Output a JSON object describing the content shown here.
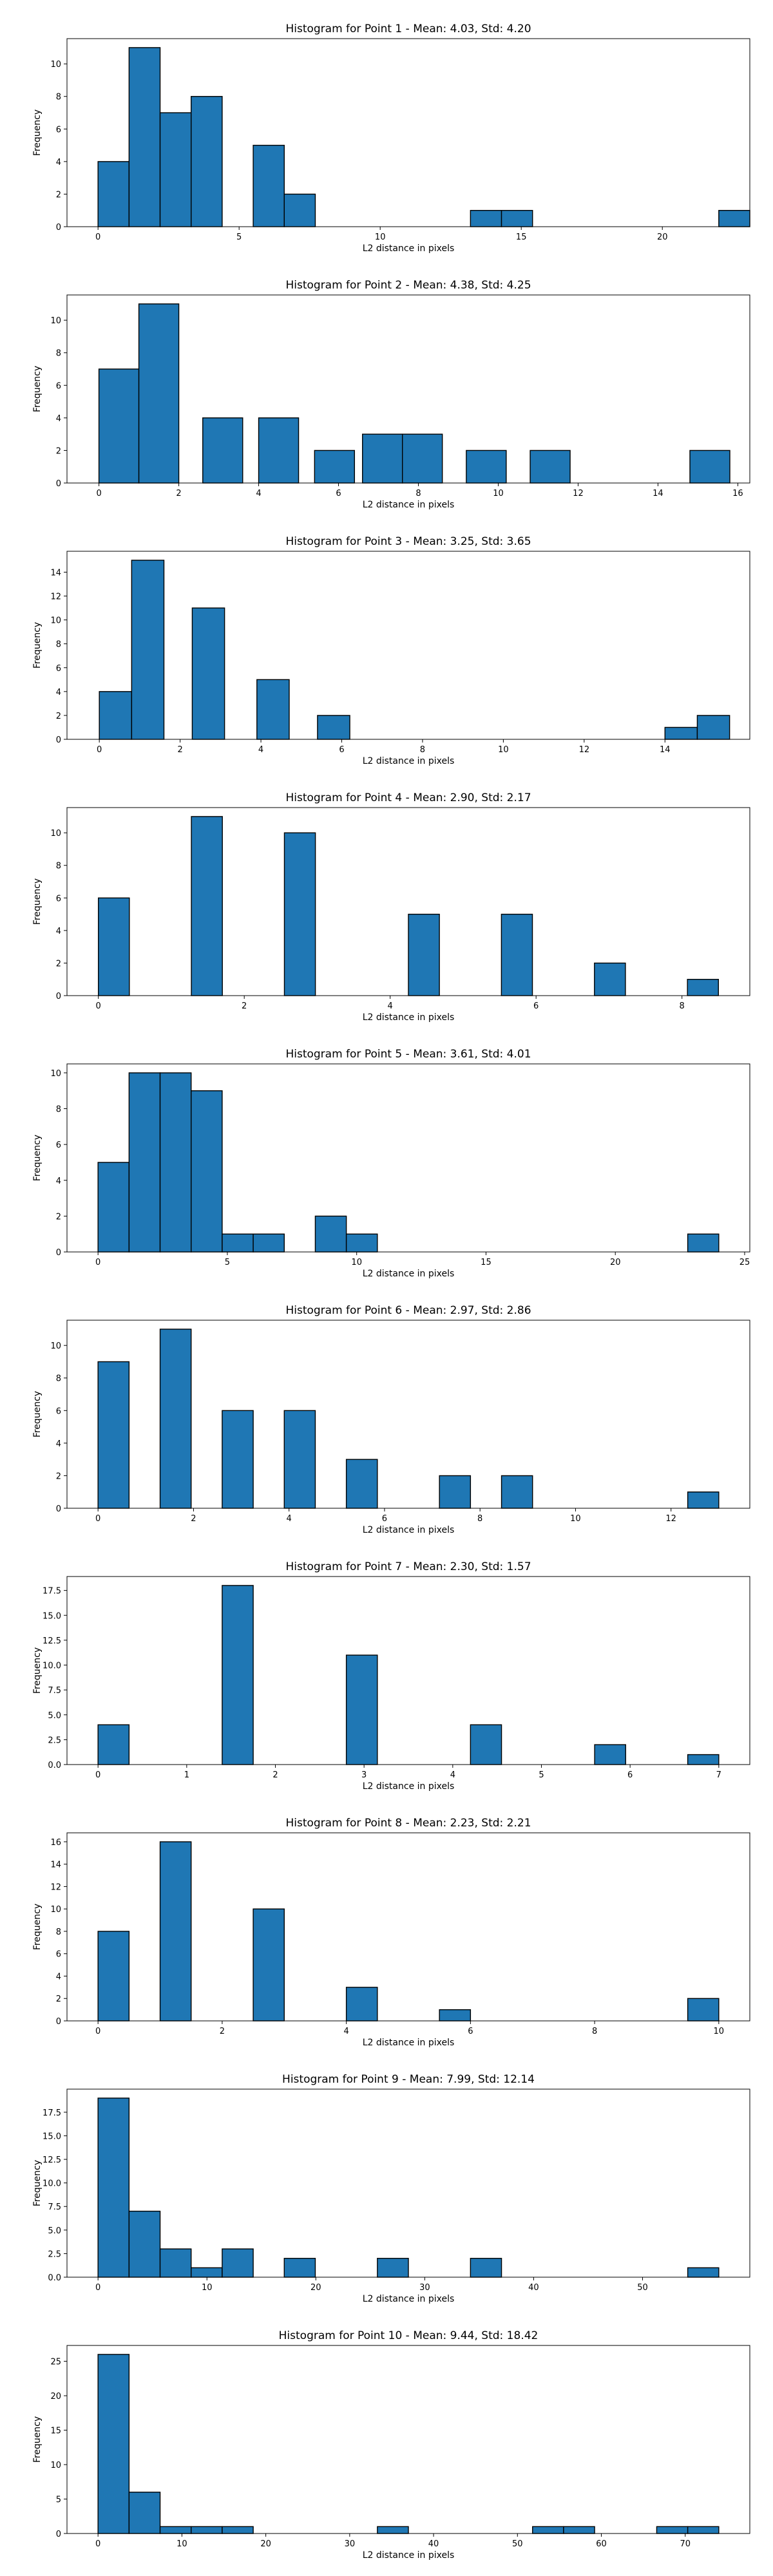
{
  "chart_data": [
    {
      "type": "bar",
      "title": "Histogram for Point 1 - Mean: 4.03, Std: 4.20",
      "xlabel": "L2 distance in pixels",
      "ylabel": "Frequency",
      "xlim": [
        -1.1,
        23.1
      ],
      "ylim": [
        0,
        11.55
      ],
      "xticks": [
        0,
        5,
        10,
        15,
        20
      ],
      "yticks": [
        0,
        2,
        4,
        6,
        8,
        10
      ],
      "bin_edges": [
        0,
        1.1,
        2.2,
        3.3,
        4.4,
        5.5,
        6.6,
        7.7,
        8.8,
        9.9,
        11.0,
        12.1,
        13.2,
        14.3,
        15.4,
        16.5,
        17.6,
        18.7,
        19.8,
        20.9,
        22.0,
        23.1
      ],
      "values": [
        4,
        11,
        7,
        8,
        0,
        5,
        2,
        0,
        0,
        0,
        0,
        0,
        1,
        1,
        0,
        0,
        0,
        0,
        0,
        0,
        1
      ]
    },
    {
      "type": "bar",
      "title": "Histogram for Point 2 - Mean: 4.38, Std: 4.25",
      "xlabel": "L2 distance in pixels",
      "ylabel": "Frequency",
      "xlim": [
        -0.8,
        16.3
      ],
      "ylim": [
        0,
        11.55
      ],
      "xticks": [
        0,
        2,
        4,
        6,
        8,
        10,
        12,
        14,
        16
      ],
      "yticks": [
        0,
        2,
        4,
        6,
        8,
        10
      ],
      "bin_edges": [
        0,
        1.0,
        2.0,
        2.6,
        3.6,
        4.0,
        5.0,
        5.4,
        6.4,
        6.6,
        7.6,
        8.6,
        9.2,
        10.2,
        10.8,
        11.8,
        14.8,
        15.8
      ],
      "values": [
        7,
        11,
        0,
        4,
        0,
        4,
        0,
        2,
        0,
        3,
        3,
        0,
        2,
        0,
        2,
        0,
        2
      ]
    },
    {
      "type": "bar",
      "title": "Histogram for Point 3 - Mean: 3.25, Std: 3.65",
      "xlabel": "L2 distance in pixels",
      "ylabel": "Frequency",
      "xlim": [
        -0.8,
        16.1
      ],
      "ylim": [
        0,
        15.75
      ],
      "xticks": [
        0,
        2,
        4,
        6,
        8,
        10,
        12,
        14
      ],
      "yticks": [
        0,
        2,
        4,
        6,
        8,
        10,
        12,
        14
      ],
      "bin_edges": [
        0,
        0.8,
        1.6,
        2.3,
        3.1,
        3.9,
        4.7,
        5.4,
        6.2,
        14.0,
        14.8,
        15.6
      ],
      "values": [
        4,
        15,
        0,
        11,
        0,
        5,
        0,
        2,
        0,
        1,
        2
      ]
    },
    {
      "type": "bar",
      "title": "Histogram for Point 4 - Mean: 2.90, Std: 2.17",
      "xlabel": "L2 distance in pixels",
      "ylabel": "Frequency",
      "xlim": [
        -0.43,
        8.93
      ],
      "ylim": [
        0,
        11.55
      ],
      "xticks": [
        0,
        2,
        4,
        6,
        8
      ],
      "yticks": [
        0,
        2,
        4,
        6,
        8,
        10
      ],
      "bin_edges": [
        0,
        0.425,
        1.275,
        1.7,
        2.55,
        2.975,
        4.25,
        4.675,
        5.525,
        5.95,
        6.8,
        7.225,
        8.075,
        8.5
      ],
      "values": [
        6,
        0,
        11,
        0,
        10,
        0,
        5,
        0,
        5,
        0,
        2,
        0,
        1
      ]
    },
    {
      "type": "bar",
      "title": "Histogram for Point 5 - Mean: 3.61, Std: 4.01",
      "xlabel": "L2 distance in pixels",
      "ylabel": "Frequency",
      "xlim": [
        -1.2,
        25.2
      ],
      "ylim": [
        0,
        10.5
      ],
      "xticks": [
        0,
        5,
        10,
        15,
        20,
        25
      ],
      "yticks": [
        0,
        2,
        4,
        6,
        8,
        10
      ],
      "bin_edges": [
        0,
        1.2,
        2.4,
        3.6,
        4.8,
        6.0,
        7.2,
        8.4,
        9.6,
        10.8,
        12.0,
        13.2,
        14.4,
        15.6,
        16.8,
        18.0,
        19.2,
        20.4,
        21.6,
        22.8,
        24.0
      ],
      "values": [
        5,
        10,
        10,
        9,
        1,
        1,
        0,
        2,
        1,
        0,
        0,
        0,
        0,
        0,
        0,
        0,
        0,
        0,
        0,
        1
      ]
    },
    {
      "type": "bar",
      "title": "Histogram for Point 6 - Mean: 2.97, Std: 2.86",
      "xlabel": "L2 distance in pixels",
      "ylabel": "Frequency",
      "xlim": [
        -0.65,
        13.65
      ],
      "ylim": [
        0,
        11.55
      ],
      "xticks": [
        0,
        2,
        4,
        6,
        8,
        10,
        12
      ],
      "yticks": [
        0,
        2,
        4,
        6,
        8,
        10
      ],
      "bin_edges": [
        0,
        0.65,
        1.3,
        1.95,
        2.6,
        3.25,
        3.9,
        4.55,
        5.2,
        5.85,
        6.5,
        7.15,
        7.8,
        8.45,
        9.1,
        12.35,
        13.0
      ],
      "values": [
        9,
        0,
        11,
        0,
        6,
        0,
        6,
        0,
        3,
        0,
        0,
        2,
        0,
        2,
        0,
        1
      ]
    },
    {
      "type": "bar",
      "title": "Histogram for Point 7 - Mean: 2.30, Std: 1.57",
      "xlabel": "L2 distance in pixels",
      "ylabel": "Frequency",
      "xlim": [
        -0.35,
        7.35
      ],
      "ylim": [
        0,
        18.9
      ],
      "xticks": [
        0,
        1,
        2,
        3,
        4,
        5,
        6,
        7
      ],
      "yticks": [
        0,
        2.5,
        5.0,
        7.5,
        10.0,
        12.5,
        15.0,
        17.5
      ],
      "ytick_labels": [
        "0.0",
        "2.5",
        "5.0",
        "7.5",
        "10.0",
        "12.5",
        "15.0",
        "17.5"
      ],
      "bin_edges": [
        0,
        0.35,
        1.4,
        1.75,
        2.8,
        3.15,
        4.2,
        4.55,
        5.6,
        5.95,
        6.65,
        7.0
      ],
      "values": [
        4,
        0,
        18,
        0,
        11,
        0,
        4,
        0,
        2,
        0,
        1
      ]
    },
    {
      "type": "bar",
      "title": "Histogram for Point 8 - Mean: 2.23, Std: 2.21",
      "xlabel": "L2 distance in pixels",
      "ylabel": "Frequency",
      "xlim": [
        -0.5,
        10.5
      ],
      "ylim": [
        0,
        16.8
      ],
      "xticks": [
        0,
        2,
        4,
        6,
        8,
        10
      ],
      "yticks": [
        0,
        2,
        4,
        6,
        8,
        10,
        12,
        14,
        16
      ],
      "bin_edges": [
        0,
        0.5,
        1.0,
        1.5,
        2.0,
        2.5,
        3.0,
        3.5,
        4.0,
        4.5,
        5.5,
        6.0,
        9.5,
        10.0
      ],
      "values": [
        8,
        0,
        16,
        0,
        0,
        10,
        0,
        0,
        3,
        0,
        1,
        0,
        2
      ]
    },
    {
      "type": "bar",
      "title": "Histogram for Point 9 - Mean: 7.99, Std: 12.14",
      "xlabel": "L2 distance in pixels",
      "ylabel": "Frequency",
      "xlim": [
        -2.85,
        59.85
      ],
      "ylim": [
        0,
        19.95
      ],
      "xticks": [
        0,
        10,
        20,
        30,
        40,
        50
      ],
      "yticks": [
        0,
        2.5,
        5.0,
        7.5,
        10.0,
        12.5,
        15.0,
        17.5
      ],
      "ytick_labels": [
        "0.0",
        "2.5",
        "5.0",
        "7.5",
        "10.0",
        "12.5",
        "15.0",
        "17.5"
      ],
      "bin_edges": [
        0,
        2.85,
        5.7,
        8.55,
        11.4,
        14.25,
        17.1,
        19.95,
        22.8,
        25.65,
        28.5,
        31.35,
        34.2,
        37.05,
        39.9,
        42.75,
        45.6,
        48.45,
        51.3,
        54.15,
        57.0
      ],
      "values": [
        19,
        7,
        3,
        1,
        3,
        0,
        2,
        0,
        0,
        2,
        0,
        0,
        2,
        0,
        0,
        0,
        0,
        0,
        0,
        1
      ]
    },
    {
      "type": "bar",
      "title": "Histogram for Point 10 - Mean: 9.44, Std: 18.42",
      "xlabel": "L2 distance in pixels",
      "ylabel": "Frequency",
      "xlim": [
        -3.7,
        77.7
      ],
      "ylim": [
        0,
        27.3
      ],
      "xticks": [
        0,
        10,
        20,
        30,
        40,
        50,
        60,
        70
      ],
      "yticks": [
        0,
        5,
        10,
        15,
        20,
        25
      ],
      "bin_edges": [
        0,
        3.7,
        7.4,
        11.1,
        14.8,
        18.5,
        22.2,
        25.9,
        29.6,
        33.3,
        37.0,
        40.7,
        44.4,
        48.1,
        51.8,
        55.5,
        59.2,
        62.9,
        66.6,
        70.3,
        74.0
      ],
      "values": [
        26,
        6,
        1,
        1,
        1,
        0,
        0,
        0,
        0,
        1,
        0,
        0,
        0,
        0,
        1,
        1,
        0,
        0,
        1,
        1
      ]
    }
  ],
  "colors": {
    "bar_fill": "#1f77b4",
    "bar_edge": "#000000",
    "axes": "#000000",
    "background": "#ffffff"
  }
}
